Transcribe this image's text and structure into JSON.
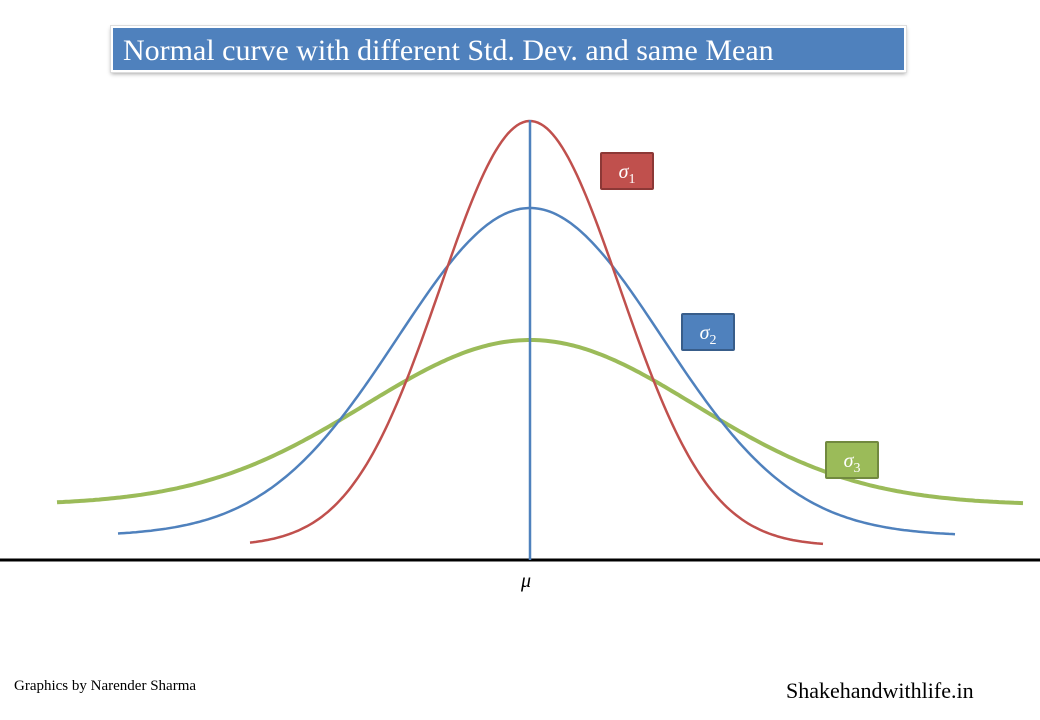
{
  "title": "Normal curve with different Std. Dev. and same  Mean",
  "curves": [
    {
      "label": "σ",
      "subscript": "1",
      "color": "#c0504d"
    },
    {
      "label": "σ",
      "subscript": "2",
      "color": "#4f81bd"
    },
    {
      "label": "σ",
      "subscript": "3",
      "color": "#9bbb59"
    }
  ],
  "mean_label": "μ",
  "axis_color": "#000000",
  "mean_line_color": "#4f81bd",
  "credit": "Graphics by Narender Sharma",
  "site": "Shakehandwithlife.in"
}
